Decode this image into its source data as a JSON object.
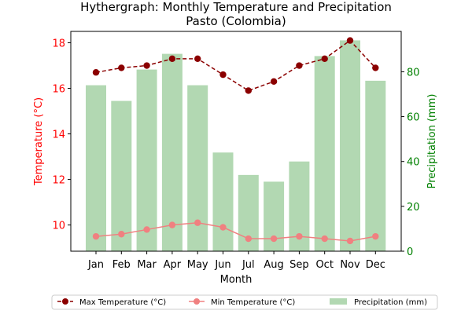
{
  "chart_data": {
    "type": "bar+line",
    "title": "Hythergraph: Monthly Temperature and Precipitation",
    "subtitle": "Pasto (Colombia)",
    "xlabel": "Month",
    "ylabel_left": "Temperature (°C)",
    "ylabel_right": "Precipitation (mm)",
    "categories": [
      "Jan",
      "Feb",
      "Mar",
      "Apr",
      "May",
      "Jun",
      "Jul",
      "Aug",
      "Sep",
      "Oct",
      "Nov",
      "Dec"
    ],
    "ylim_left": [
      8.85,
      18.5
    ],
    "yticks_left": [
      10,
      12,
      14,
      16,
      18
    ],
    "ylim_right": [
      0,
      98
    ],
    "yticks_right": [
      0,
      20,
      40,
      60,
      80
    ],
    "series": [
      {
        "name": "Max Temperature (°C)",
        "axis": "left",
        "kind": "line",
        "color": "#8b0000",
        "dash": true,
        "values": [
          16.7,
          16.9,
          17.0,
          17.3,
          17.3,
          16.6,
          15.9,
          16.3,
          17.0,
          17.3,
          18.1,
          16.9
        ]
      },
      {
        "name": "Min Temperature (°C)",
        "axis": "left",
        "kind": "line",
        "color": "#f08080",
        "dash": false,
        "values": [
          9.5,
          9.6,
          9.8,
          10.0,
          10.1,
          9.9,
          9.4,
          9.4,
          9.5,
          9.4,
          9.3,
          9.5
        ]
      },
      {
        "name": "Precipitation (mm)",
        "axis": "right",
        "kind": "bar",
        "color": "#b2d8b2",
        "values": [
          74,
          67,
          81,
          88,
          74,
          44,
          34,
          31,
          40,
          87,
          94,
          76
        ]
      }
    ],
    "colors": {
      "left_axis": "#ff0000",
      "right_axis": "#008000"
    },
    "grid": false,
    "legend_position": "bottom-center"
  }
}
